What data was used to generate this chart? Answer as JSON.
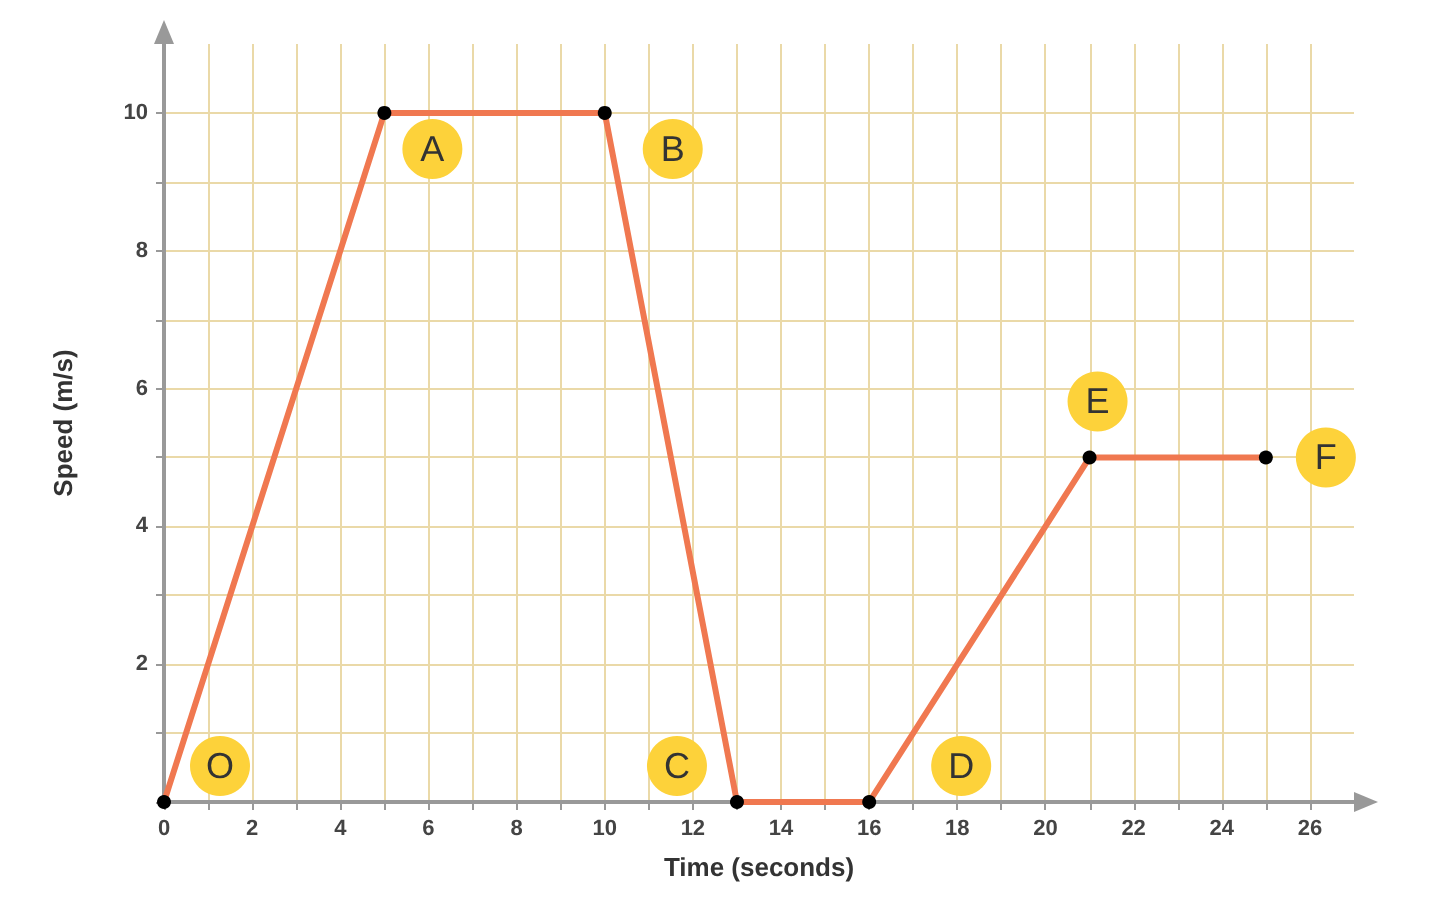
{
  "chart_data": {
    "type": "line",
    "xlabel": "Time (seconds)",
    "ylabel": "Speed (m/s)",
    "x": [
      0,
      5,
      10,
      13,
      16,
      21,
      25
    ],
    "series": [
      {
        "color": "#f07850",
        "values": [
          0,
          10,
          10,
          0,
          0,
          5,
          5
        ]
      }
    ],
    "xlim": [
      0,
      27
    ],
    "ylim": [
      0,
      11
    ],
    "xticks": [
      0,
      {
        "value": 1,
        "label": null
      },
      2,
      {
        "value": 3,
        "label": null
      },
      4,
      {
        "value": 5,
        "label": null
      },
      6,
      {
        "value": 7,
        "label": null
      },
      8,
      {
        "value": 9,
        "label": null
      },
      10,
      {
        "value": 11,
        "label": null
      },
      12,
      {
        "value": 13,
        "label": null
      },
      14,
      {
        "value": 15,
        "label": null
      },
      16,
      {
        "value": 17,
        "label": null
      },
      18,
      {
        "value": 19,
        "label": null
      },
      20,
      {
        "value": 21,
        "label": null
      },
      22,
      {
        "value": 23,
        "label": null
      },
      24,
      {
        "value": 25,
        "label": null
      },
      26
    ],
    "yticks": [
      {
        "value": 0,
        "label": null
      },
      {
        "value": 1,
        "label": null
      },
      2,
      {
        "value": 3,
        "label": null
      },
      4,
      {
        "value": 5,
        "label": null
      },
      6,
      {
        "value": 7,
        "label": null
      },
      8,
      {
        "value": 9,
        "label": null
      },
      10
    ],
    "grid": true,
    "marker": "circle",
    "line_style": "solid",
    "annotations": [
      {
        "text": "O",
        "x": 0,
        "y": 0
      },
      {
        "text": "A",
        "x": 5,
        "y": 10
      },
      {
        "text": "B",
        "x": 10,
        "y": 10
      },
      {
        "text": "C",
        "x": 13,
        "y": 0
      },
      {
        "text": "D",
        "x": 16,
        "y": 0
      },
      {
        "text": "E",
        "x": 21,
        "y": 5
      },
      {
        "text": "F",
        "x": 25,
        "y": 5
      }
    ]
  }
}
